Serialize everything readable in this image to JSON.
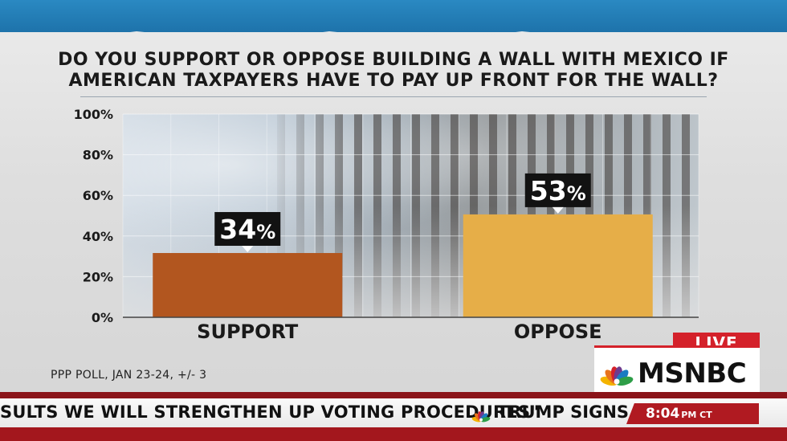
{
  "question": {
    "line1": "DO YOU SUPPORT OR OPPOSE BUILDING A WALL WITH MEXICO IF",
    "line2": "AMERICAN TAXPAYERS HAVE TO PAY UP FRONT FOR THE WALL?"
  },
  "source": "PPP POLL, JAN 23-24, +/- 3",
  "chart_data": {
    "type": "bar",
    "title": "DO YOU SUPPORT OR OPPOSE BUILDING A WALL WITH MEXICO IF AMERICAN TAXPAYERS HAVE TO PAY UP FRONT FOR THE WALL?",
    "categories": [
      "SUPPORT",
      "OPPOSE"
    ],
    "values": [
      34,
      53
    ],
    "value_labels": [
      "34%",
      "53%"
    ],
    "bar_colors": [
      "#b2561f",
      "#e6ae48"
    ],
    "ylim": [
      0,
      100
    ],
    "y_ticks": [
      0,
      20,
      40,
      60,
      80,
      100
    ],
    "y_tick_labels": [
      "0%",
      "20%",
      "40%",
      "60%",
      "80%",
      "100%"
    ],
    "xlabel": "",
    "ylabel": "",
    "grid": true
  },
  "branding": {
    "live": "LIVE",
    "network": "MSNBC",
    "peacock_colors": [
      "#f4b400",
      "#e8731c",
      "#d4212a",
      "#6e3b8e",
      "#1a7bc2",
      "#2e9e48"
    ]
  },
  "ticker": {
    "headline": "SULTS WE WILL STRENGTHEN UP VOTING PROCEDURES\"",
    "next": "TRUMP SIGNS E",
    "time": "8:04",
    "zone": "PM CT"
  }
}
